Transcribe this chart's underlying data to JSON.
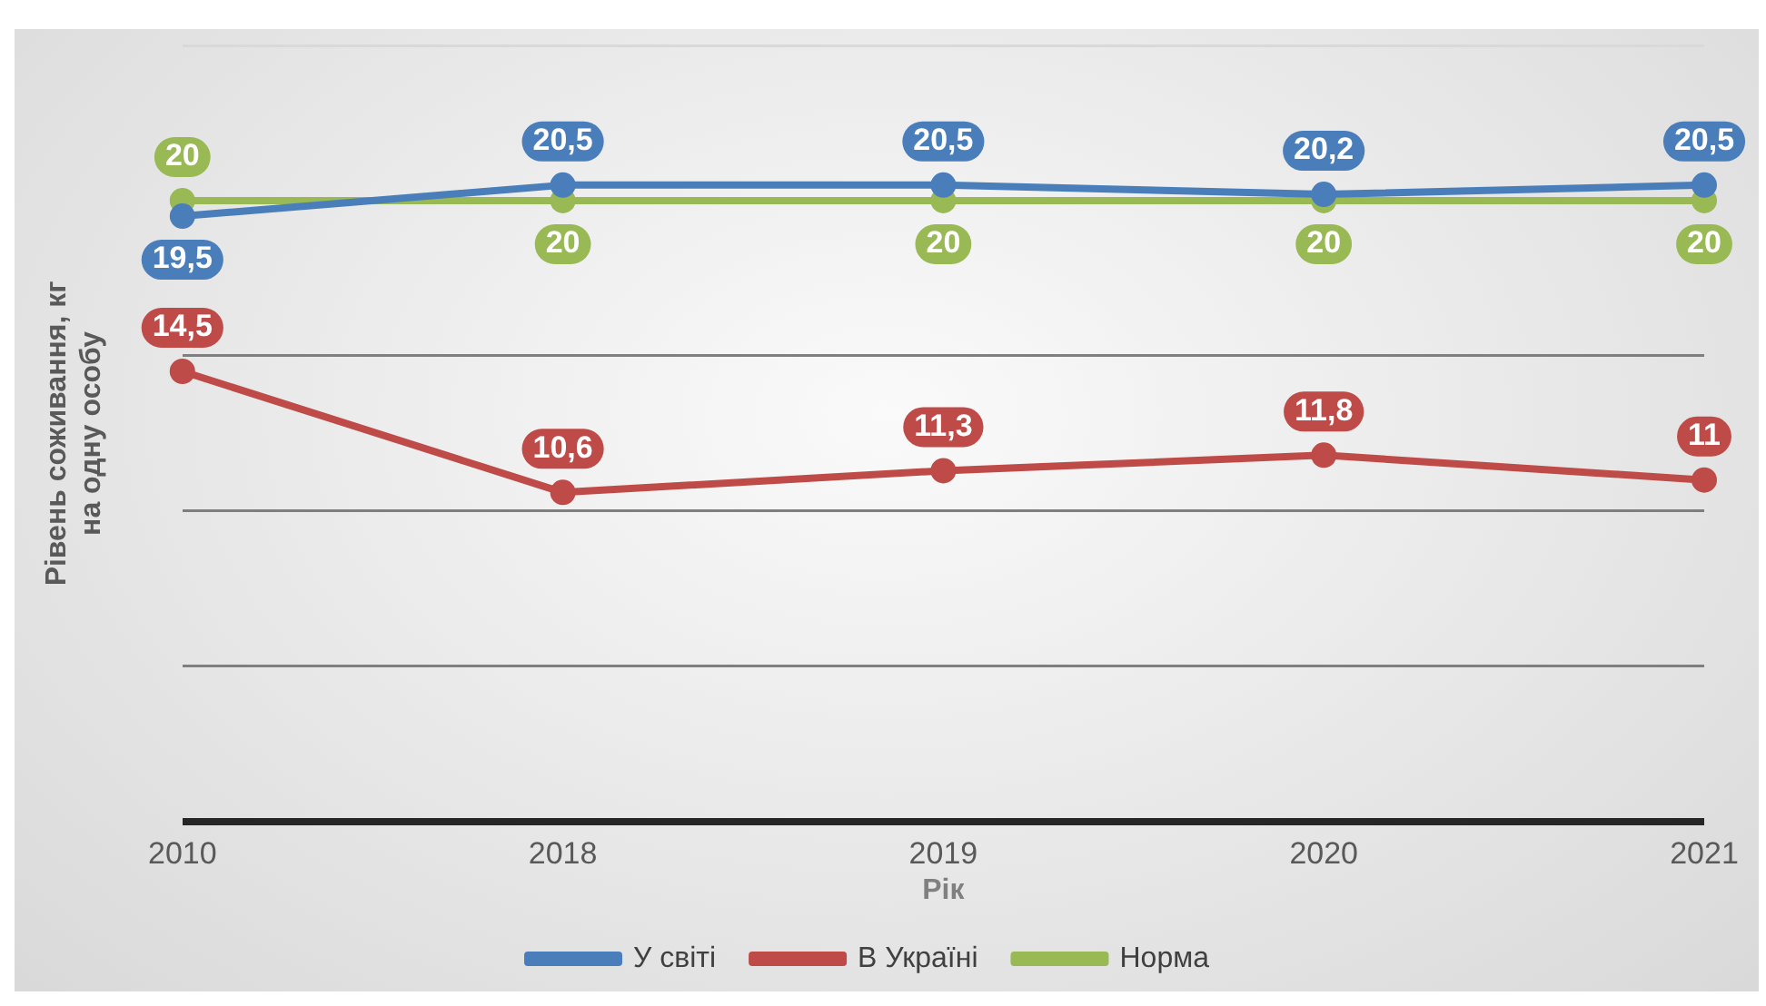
{
  "chart_data": {
    "type": "line",
    "xlabel": "Рік",
    "ylabel": "Рівень соживання, кг\nна одну особу",
    "categories": [
      "2010",
      "2018",
      "2019",
      "2020",
      "2021"
    ],
    "series": [
      {
        "name": "У світі",
        "color": "#4a7ebb",
        "values": [
          19.5,
          20.5,
          20.5,
          20.2,
          20.5
        ],
        "value_labels": [
          "19,5",
          "20,5",
          "20,5",
          "20,2",
          "20,5"
        ]
      },
      {
        "name": "В Україні",
        "color": "#be4b48",
        "values": [
          14.5,
          10.6,
          11.3,
          11.8,
          11
        ],
        "value_labels": [
          "14,5",
          "10,6",
          "11,3",
          "11,8",
          "11"
        ]
      },
      {
        "name": "Норма",
        "color": "#98b954",
        "values": [
          20,
          20,
          20,
          20,
          20
        ],
        "value_labels": [
          "20",
          "20",
          "20",
          "20",
          "20"
        ]
      }
    ],
    "ylim": [
      0,
      25
    ],
    "yticks": [
      {
        "value": 0,
        "label": null
      },
      {
        "value": 5,
        "label": null
      },
      {
        "value": 10,
        "label": null
      },
      {
        "value": 15,
        "label": null
      },
      {
        "value": 25,
        "label": null
      }
    ],
    "tick_labels": "x",
    "grid": "y",
    "legend": "bottom",
    "marker": "circle",
    "line_style": "solid"
  }
}
